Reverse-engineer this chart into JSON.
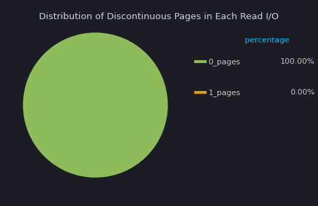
{
  "title": "Distribution of Discontinuous Pages in Each Read I/O",
  "background_color": "#1c1c24",
  "slices": [
    99.999,
    0.001
  ],
  "labels": [
    "0_pages",
    "1_pages"
  ],
  "colors": [
    "#8fbc5a",
    "#d4a017"
  ],
  "legend_header": "percentage",
  "legend_values": [
    "100.00%",
    "0.00%"
  ],
  "title_color": "#c8d8e8",
  "legend_header_color": "#00bfff",
  "legend_label_color": "#c8c8c8",
  "legend_value_color": "#c8c8c8",
  "title_fontsize": 9.5,
  "legend_fontsize": 8.2
}
